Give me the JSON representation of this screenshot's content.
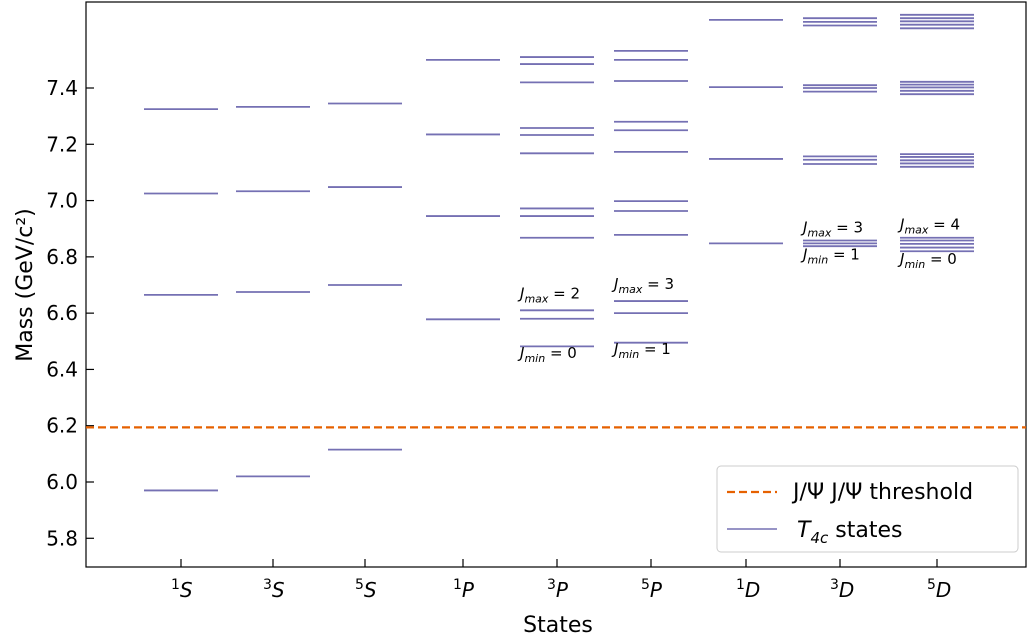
{
  "chart_data": {
    "type": "line",
    "ylabel": "Mass (GeV/c²)",
    "xlabel": "States",
    "ylim": [
      5.7,
      7.53
    ],
    "yticks": [
      "5.8",
      "6.0",
      "6.2",
      "6.4",
      "6.6",
      "6.8",
      "7.0",
      "7.2",
      "7.4"
    ],
    "categories": [
      {
        "label": "S",
        "mult": "1",
        "levels": [
          5.97,
          6.665,
          7.025,
          7.325
        ]
      },
      {
        "label": "S",
        "mult": "3",
        "levels": [
          6.02,
          6.675,
          7.033,
          7.333
        ]
      },
      {
        "label": "S",
        "mult": "5",
        "levels": [
          6.115,
          6.7,
          7.048,
          7.345
        ]
      },
      {
        "label": "P",
        "mult": "1",
        "levels": [
          6.578,
          6.945,
          7.235,
          7.5
        ]
      },
      {
        "label": "P",
        "mult": "3",
        "levels": [
          6.482,
          6.58,
          6.61,
          6.868,
          6.945,
          6.972,
          7.168,
          7.233,
          7.258,
          7.42,
          7.485,
          7.51
        ]
      },
      {
        "label": "P",
        "mult": "5",
        "levels": [
          6.495,
          6.6,
          6.643,
          6.878,
          6.963,
          6.998,
          7.173,
          7.25,
          7.28,
          7.425,
          7.5,
          7.532
        ]
      },
      {
        "label": "D",
        "mult": "1",
        "levels": [
          6.848,
          7.148,
          7.403,
          7.642
        ]
      },
      {
        "label": "D",
        "mult": "3",
        "levels": [
          6.838,
          6.848,
          6.858,
          7.13,
          7.145,
          7.157,
          7.387,
          7.4,
          7.41,
          7.622,
          7.635,
          7.648
        ]
      },
      {
        "label": "D",
        "mult": "5",
        "levels": [
          6.82,
          6.833,
          6.846,
          6.858,
          6.868,
          7.12,
          7.132,
          7.143,
          7.155,
          7.165,
          7.378,
          7.39,
          7.402,
          7.412,
          7.422,
          7.612,
          7.625,
          7.637,
          7.648,
          7.66
        ]
      }
    ],
    "threshold": 6.194,
    "annotations": [
      {
        "text": "J_max = 2",
        "category": 4,
        "y": 6.652,
        "align": "left"
      },
      {
        "text": "J_min = 0",
        "category": 4,
        "y": 6.44,
        "align": "left"
      },
      {
        "text": "J_max = 3",
        "category": 5,
        "y": 6.685,
        "align": "left"
      },
      {
        "text": "J_min = 1",
        "category": 5,
        "y": 6.455,
        "align": "left"
      },
      {
        "text": "J_max = 3",
        "category": 7,
        "y": 6.887,
        "align": "left"
      },
      {
        "text": "J_min = 1",
        "category": 7,
        "y": 6.79,
        "align": "left"
      },
      {
        "text": "J_max = 4",
        "category": 8,
        "y": 6.897,
        "align": "left"
      },
      {
        "text": "J_min = 0",
        "category": 8,
        "y": 6.775,
        "align": "left"
      }
    ],
    "legend": {
      "placement": "bottom-right",
      "entries": [
        {
          "label": "J/Ψ J/Ψ threshold",
          "style": "dashed",
          "color": "#e66100"
        },
        {
          "label": "T4c states",
          "style": "solid",
          "color": "#7570b3"
        }
      ]
    },
    "colors": {
      "states": "#7570b3",
      "threshold": "#e66100"
    }
  }
}
